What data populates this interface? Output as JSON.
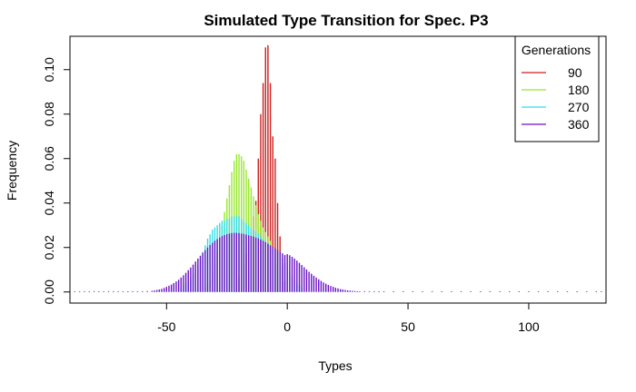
{
  "chart_data": {
    "type": "bar",
    "title": "Simulated Type Transition for Spec. P3",
    "xlabel": "Types",
    "ylabel": "Frequency",
    "xlim": [
      -90,
      132
    ],
    "ylim": [
      -0.005,
      0.115
    ],
    "x_ticks": [
      -50,
      0,
      50,
      100
    ],
    "y_ticks": [
      0.0,
      0.02,
      0.04,
      0.06,
      0.08,
      0.1
    ],
    "x_tick_labels": [
      "-50",
      "0",
      "50",
      "100"
    ],
    "y_tick_labels": [
      "0.00",
      "0.02",
      "0.04",
      "0.06",
      "0.08",
      "0.10"
    ],
    "x_range": [
      -88,
      130
    ],
    "legend": {
      "title": "Generations",
      "position": "top-right"
    },
    "series": [
      {
        "name": "90",
        "color": "#cc1f1f",
        "points": [
          [
            -22,
            0.003
          ],
          [
            -21,
            0.005
          ],
          [
            -20,
            0.007
          ],
          [
            -19,
            0.01
          ],
          [
            -18,
            0.013
          ],
          [
            -17,
            0.017
          ],
          [
            -16,
            0.022
          ],
          [
            -15,
            0.027
          ],
          [
            -14,
            0.034
          ],
          [
            -13,
            0.041
          ],
          [
            -12,
            0.06
          ],
          [
            -11,
            0.08
          ],
          [
            -10,
            0.094
          ],
          [
            -9,
            0.11
          ],
          [
            -8,
            0.111
          ],
          [
            -7,
            0.094
          ],
          [
            -6,
            0.07
          ],
          [
            -5,
            0.06
          ],
          [
            -4,
            0.04
          ],
          [
            -3,
            0.025
          ],
          [
            -2,
            0.012
          ],
          [
            -1,
            0.005
          ],
          [
            0,
            0.002
          ]
        ]
      },
      {
        "name": "180",
        "color": "#98e82d",
        "points": [
          [
            -34,
            0.002
          ],
          [
            -33,
            0.004
          ],
          [
            -32,
            0.006
          ],
          [
            -31,
            0.009
          ],
          [
            -30,
            0.013
          ],
          [
            -29,
            0.018
          ],
          [
            -28,
            0.024
          ],
          [
            -27,
            0.03
          ],
          [
            -26,
            0.036
          ],
          [
            -25,
            0.042
          ],
          [
            -24,
            0.048
          ],
          [
            -23,
            0.054
          ],
          [
            -22,
            0.059
          ],
          [
            -21,
            0.062
          ],
          [
            -20,
            0.062
          ],
          [
            -19,
            0.061
          ],
          [
            -18,
            0.059
          ],
          [
            -17,
            0.055
          ],
          [
            -16,
            0.051
          ],
          [
            -15,
            0.047
          ],
          [
            -14,
            0.043
          ],
          [
            -13,
            0.039
          ],
          [
            -12,
            0.035
          ],
          [
            -11,
            0.032
          ],
          [
            -10,
            0.029
          ],
          [
            -9,
            0.027
          ],
          [
            -8,
            0.025
          ],
          [
            -7,
            0.023
          ],
          [
            -6,
            0.02
          ],
          [
            -5,
            0.016
          ],
          [
            -4,
            0.012
          ],
          [
            -3,
            0.008
          ],
          [
            -2,
            0.005
          ]
        ]
      },
      {
        "name": "270",
        "color": "#33dde8",
        "points": [
          [
            -44,
            0.002
          ],
          [
            -43,
            0.003
          ],
          [
            -42,
            0.004
          ],
          [
            -41,
            0.005
          ],
          [
            -40,
            0.006
          ],
          [
            -39,
            0.008
          ],
          [
            -38,
            0.01
          ],
          [
            -37,
            0.012
          ],
          [
            -36,
            0.015
          ],
          [
            -35,
            0.018
          ],
          [
            -34,
            0.021
          ],
          [
            -33,
            0.024
          ],
          [
            -32,
            0.026
          ],
          [
            -31,
            0.028
          ],
          [
            -30,
            0.029
          ],
          [
            -29,
            0.03
          ],
          [
            -28,
            0.031
          ],
          [
            -27,
            0.032
          ],
          [
            -26,
            0.032
          ],
          [
            -25,
            0.033
          ],
          [
            -24,
            0.033
          ],
          [
            -23,
            0.034
          ],
          [
            -22,
            0.034
          ],
          [
            -21,
            0.034
          ],
          [
            -20,
            0.034
          ],
          [
            -19,
            0.033
          ],
          [
            -18,
            0.032
          ],
          [
            -17,
            0.031
          ],
          [
            -16,
            0.03
          ],
          [
            -15,
            0.029
          ],
          [
            -14,
            0.028
          ],
          [
            -13,
            0.027
          ],
          [
            -12,
            0.026
          ],
          [
            -11,
            0.025
          ],
          [
            -10,
            0.024
          ],
          [
            -9,
            0.023
          ],
          [
            -8,
            0.022
          ],
          [
            -7,
            0.021
          ],
          [
            -6,
            0.02
          ],
          [
            -5,
            0.019
          ],
          [
            -4,
            0.018
          ],
          [
            -3,
            0.017
          ],
          [
            -2,
            0.015
          ],
          [
            -1,
            0.013
          ],
          [
            0,
            0.011
          ],
          [
            1,
            0.009
          ],
          [
            2,
            0.007
          ],
          [
            3,
            0.005
          ],
          [
            4,
            0.004
          ],
          [
            5,
            0.003
          ],
          [
            6,
            0.002
          ]
        ]
      },
      {
        "name": "360",
        "color": "#6a12c4",
        "points": [
          [
            -88,
            0.0001
          ],
          [
            -86,
            0.0001
          ],
          [
            -84,
            0.0001
          ],
          [
            -82,
            0.0001
          ],
          [
            -80,
            0.0001
          ],
          [
            -78,
            0.0001
          ],
          [
            -76,
            0.0001
          ],
          [
            -74,
            0.0001
          ],
          [
            -72,
            0.0001
          ],
          [
            -70,
            0.0001
          ],
          [
            -68,
            0.0001
          ],
          [
            -66,
            0.0001
          ],
          [
            -64,
            0.0001
          ],
          [
            -62,
            0.0002
          ],
          [
            -60,
            0.0003
          ],
          [
            -58,
            0.0004
          ],
          [
            -56,
            0.0005
          ],
          [
            -55,
            0.0007
          ],
          [
            -54,
            0.0009
          ],
          [
            -53,
            0.0011
          ],
          [
            -52,
            0.0014
          ],
          [
            -51,
            0.0018
          ],
          [
            -50,
            0.0023
          ],
          [
            -49,
            0.0028
          ],
          [
            -48,
            0.0033
          ],
          [
            -47,
            0.004
          ],
          [
            -46,
            0.0047
          ],
          [
            -45,
            0.0055
          ],
          [
            -44,
            0.0065
          ],
          [
            -43,
            0.0075
          ],
          [
            -42,
            0.0086
          ],
          [
            -41,
            0.0098
          ],
          [
            -40,
            0.011
          ],
          [
            -39,
            0.0123
          ],
          [
            -38,
            0.0137
          ],
          [
            -37,
            0.015
          ],
          [
            -36,
            0.0163
          ],
          [
            -35,
            0.0176
          ],
          [
            -34,
            0.0188
          ],
          [
            -33,
            0.02
          ],
          [
            -32,
            0.0211
          ],
          [
            -31,
            0.0221
          ],
          [
            -30,
            0.023
          ],
          [
            -29,
            0.0238
          ],
          [
            -28,
            0.0245
          ],
          [
            -27,
            0.0251
          ],
          [
            -26,
            0.0256
          ],
          [
            -25,
            0.026
          ],
          [
            -24,
            0.0263
          ],
          [
            -23,
            0.0265
          ],
          [
            -22,
            0.0266
          ],
          [
            -21,
            0.0266
          ],
          [
            -20,
            0.0265
          ],
          [
            -19,
            0.0263
          ],
          [
            -18,
            0.0261
          ],
          [
            -17,
            0.0258
          ],
          [
            -16,
            0.0255
          ],
          [
            -15,
            0.0252
          ],
          [
            -14,
            0.0249
          ],
          [
            -13,
            0.0245
          ],
          [
            -12,
            0.0241
          ],
          [
            -11,
            0.0236
          ],
          [
            -10,
            0.023
          ],
          [
            -9,
            0.0224
          ],
          [
            -8,
            0.0217
          ],
          [
            -7,
            0.021
          ],
          [
            -6,
            0.0203
          ],
          [
            -5,
            0.0196
          ],
          [
            -4,
            0.0189
          ],
          [
            -3,
            0.0181
          ],
          [
            -2,
            0.0174
          ],
          [
            -1,
            0.0166
          ],
          [
            0,
            0.017
          ],
          [
            1,
            0.0165
          ],
          [
            2,
            0.0158
          ],
          [
            3,
            0.015
          ],
          [
            4,
            0.0141
          ],
          [
            5,
            0.0131
          ],
          [
            6,
            0.0121
          ],
          [
            7,
            0.0111
          ],
          [
            8,
            0.0101
          ],
          [
            9,
            0.0091
          ],
          [
            10,
            0.0082
          ],
          [
            11,
            0.0073
          ],
          [
            12,
            0.0065
          ],
          [
            13,
            0.0057
          ],
          [
            14,
            0.005
          ],
          [
            15,
            0.0043
          ],
          [
            16,
            0.0037
          ],
          [
            17,
            0.0032
          ],
          [
            18,
            0.0027
          ],
          [
            19,
            0.0023
          ],
          [
            20,
            0.0019
          ],
          [
            21,
            0.0016
          ],
          [
            22,
            0.0013
          ],
          [
            23,
            0.0011
          ],
          [
            24,
            0.0009
          ],
          [
            25,
            0.0007
          ],
          [
            26,
            0.0006
          ],
          [
            27,
            0.0005
          ],
          [
            28,
            0.0004
          ],
          [
            29,
            0.0003
          ],
          [
            30,
            0.0003
          ],
          [
            32,
            0.0002
          ],
          [
            34,
            0.0002
          ],
          [
            36,
            0.0001
          ],
          [
            38,
            0.0001
          ],
          [
            40,
            0.0001
          ],
          [
            44,
            0.0001
          ],
          [
            48,
            0.0001
          ],
          [
            52,
            0.0001
          ],
          [
            56,
            0.0001
          ],
          [
            60,
            0.0001
          ],
          [
            64,
            0.0001
          ],
          [
            68,
            0.0001
          ],
          [
            72,
            0.0001
          ],
          [
            76,
            0.0001
          ],
          [
            80,
            0.0001
          ],
          [
            84,
            0.0001
          ],
          [
            88,
            0.0001
          ],
          [
            92,
            0.0001
          ],
          [
            96,
            0.0001
          ],
          [
            100,
            0.0001
          ],
          [
            104,
            0.0001
          ],
          [
            108,
            0.0001
          ],
          [
            112,
            0.0001
          ],
          [
            116,
            0.0001
          ],
          [
            120,
            0.0001
          ],
          [
            124,
            0.0001
          ],
          [
            128,
            0.0001
          ],
          [
            130,
            0.0001
          ]
        ]
      }
    ]
  }
}
